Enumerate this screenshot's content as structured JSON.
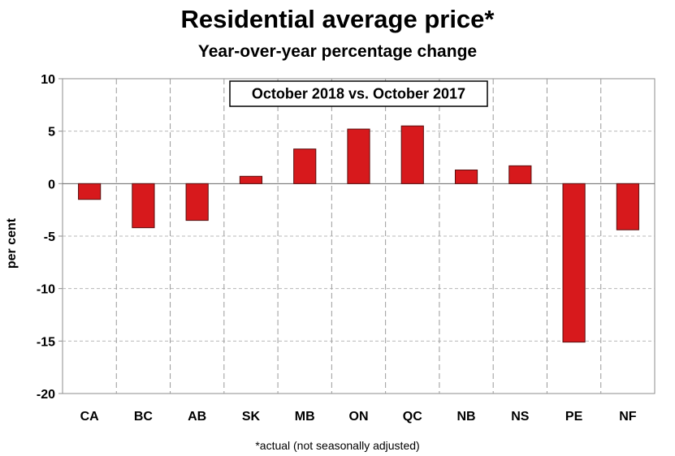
{
  "chart_data": {
    "type": "bar",
    "title": "Residential average price*",
    "subtitle": "Year-over-year percentage change",
    "annotation": "October 2018 vs. October 2017",
    "ylabel": "per cent",
    "xlabel": "",
    "footnote": "*actual (not seasonally adjusted)",
    "categories": [
      "CA",
      "BC",
      "AB",
      "SK",
      "MB",
      "ON",
      "QC",
      "NB",
      "NS",
      "PE",
      "NF"
    ],
    "values": [
      -1.5,
      -4.2,
      -3.5,
      0.7,
      3.3,
      5.2,
      5.5,
      1.3,
      1.7,
      -15.1,
      -4.4
    ],
    "ylim": [
      -20,
      10
    ],
    "yticks": [
      10,
      5,
      0,
      -5,
      -10,
      -15,
      -20
    ],
    "grid": true,
    "colors": {
      "bar": "#d7191c",
      "bar_stroke": "#5a0d0d",
      "grid": "#b8b8b8",
      "axis": "#8c8c8c"
    }
  }
}
